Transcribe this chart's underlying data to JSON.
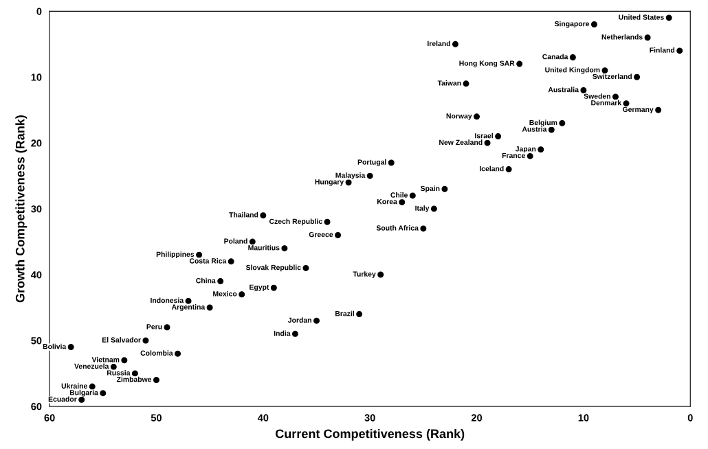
{
  "chart_data": {
    "type": "scatter",
    "xlabel": "Current Competitiveness (Rank)",
    "ylabel": "Growth Competitiveness (Rank)",
    "xlim": [
      60,
      0
    ],
    "xticks": [
      60,
      50,
      40,
      30,
      20,
      10,
      0
    ],
    "ylim": [
      60,
      0
    ],
    "yticks": [
      0,
      10,
      20,
      30,
      40,
      50,
      60
    ],
    "grid": false,
    "marker": "circle",
    "series": [
      {
        "color": "#000000",
        "x": [
          2,
          9,
          4,
          1,
          22,
          11,
          16,
          8,
          5,
          21,
          10,
          7,
          6,
          3,
          20,
          12,
          13,
          18,
          19,
          14,
          15,
          28,
          17,
          30,
          32,
          23,
          26,
          27,
          24,
          40,
          34,
          25,
          33,
          41,
          38,
          46,
          43,
          36,
          29,
          44,
          39,
          42,
          47,
          45,
          31,
          35,
          49,
          37,
          51,
          58,
          48,
          53,
          54,
          52,
          50,
          56,
          55,
          57
        ],
        "values": [
          1,
          2,
          4,
          6,
          5,
          7,
          8,
          9,
          10,
          11,
          12,
          13,
          14,
          15,
          16,
          17,
          18,
          19,
          20,
          21,
          22,
          23,
          24,
          25,
          26,
          27,
          28,
          29,
          30,
          31,
          32,
          33,
          34,
          35,
          36,
          37,
          38,
          39,
          40,
          41,
          42,
          43,
          44,
          45,
          46,
          47,
          48,
          49,
          50,
          51,
          52,
          53,
          54,
          55,
          56,
          57,
          58,
          59
        ]
      }
    ],
    "annotations": [
      {
        "text": "United States",
        "x": 2,
        "y": 1
      },
      {
        "text": "Singapore",
        "x": 9,
        "y": 2
      },
      {
        "text": "Netherlands",
        "x": 4,
        "y": 4
      },
      {
        "text": "Finland",
        "x": 1,
        "y": 6
      },
      {
        "text": "Ireland",
        "x": 22,
        "y": 5
      },
      {
        "text": "Canada",
        "x": 11,
        "y": 7
      },
      {
        "text": "Hong Kong SAR",
        "x": 16,
        "y": 8
      },
      {
        "text": "United Kingdom",
        "x": 8,
        "y": 9
      },
      {
        "text": "Switzerland",
        "x": 5,
        "y": 10
      },
      {
        "text": "Taiwan",
        "x": 21,
        "y": 11
      },
      {
        "text": "Australia",
        "x": 10,
        "y": 12
      },
      {
        "text": "Sweden",
        "x": 7,
        "y": 13
      },
      {
        "text": "Denmark",
        "x": 6,
        "y": 14
      },
      {
        "text": "Germany",
        "x": 3,
        "y": 15
      },
      {
        "text": "Norway",
        "x": 20,
        "y": 16
      },
      {
        "text": "Belgium",
        "x": 12,
        "y": 17
      },
      {
        "text": "Austria",
        "x": 13,
        "y": 18
      },
      {
        "text": "Israel",
        "x": 18,
        "y": 19
      },
      {
        "text": "New Zealand",
        "x": 19,
        "y": 20
      },
      {
        "text": "Japan",
        "x": 14,
        "y": 21
      },
      {
        "text": "France",
        "x": 15,
        "y": 22
      },
      {
        "text": "Portugal",
        "x": 28,
        "y": 23
      },
      {
        "text": "Iceland",
        "x": 17,
        "y": 24
      },
      {
        "text": "Malaysia",
        "x": 30,
        "y": 25
      },
      {
        "text": "Hungary",
        "x": 32,
        "y": 26
      },
      {
        "text": "Spain",
        "x": 23,
        "y": 27
      },
      {
        "text": "Chile",
        "x": 26,
        "y": 28
      },
      {
        "text": "Korea",
        "x": 27,
        "y": 29
      },
      {
        "text": "Italy",
        "x": 24,
        "y": 30
      },
      {
        "text": "Thailand",
        "x": 40,
        "y": 31
      },
      {
        "text": "Czech Republic",
        "x": 34,
        "y": 32
      },
      {
        "text": "South Africa",
        "x": 25,
        "y": 33
      },
      {
        "text": "Greece",
        "x": 33,
        "y": 34
      },
      {
        "text": "Poland",
        "x": 41,
        "y": 35
      },
      {
        "text": "Mauritius",
        "x": 38,
        "y": 36
      },
      {
        "text": "Philippines",
        "x": 46,
        "y": 37
      },
      {
        "text": "Costa Rica",
        "x": 43,
        "y": 38
      },
      {
        "text": "Slovak Republic",
        "x": 36,
        "y": 39
      },
      {
        "text": "Turkey",
        "x": 29,
        "y": 40
      },
      {
        "text": "China",
        "x": 44,
        "y": 41
      },
      {
        "text": "Egypt",
        "x": 39,
        "y": 42
      },
      {
        "text": "Mexico",
        "x": 42,
        "y": 43
      },
      {
        "text": "Indonesia",
        "x": 47,
        "y": 44
      },
      {
        "text": "Argentina",
        "x": 45,
        "y": 45
      },
      {
        "text": "Brazil",
        "x": 31,
        "y": 46
      },
      {
        "text": "Jordan",
        "x": 35,
        "y": 47
      },
      {
        "text": "Peru",
        "x": 49,
        "y": 48
      },
      {
        "text": "India",
        "x": 37,
        "y": 49
      },
      {
        "text": "El Salvador",
        "x": 51,
        "y": 50
      },
      {
        "text": "Bolivia",
        "x": 58,
        "y": 51
      },
      {
        "text": "Colombia",
        "x": 48,
        "y": 52
      },
      {
        "text": "Vietnam",
        "x": 53,
        "y": 53
      },
      {
        "text": "Venezuela",
        "x": 54,
        "y": 54
      },
      {
        "text": "Russia",
        "x": 52,
        "y": 55
      },
      {
        "text": "Zimbabwe",
        "x": 50,
        "y": 56
      },
      {
        "text": "Ukraine",
        "x": 56,
        "y": 57
      },
      {
        "text": "Bulgaria",
        "x": 55,
        "y": 58
      },
      {
        "text": "Ecuador",
        "x": 57,
        "y": 59
      }
    ]
  }
}
